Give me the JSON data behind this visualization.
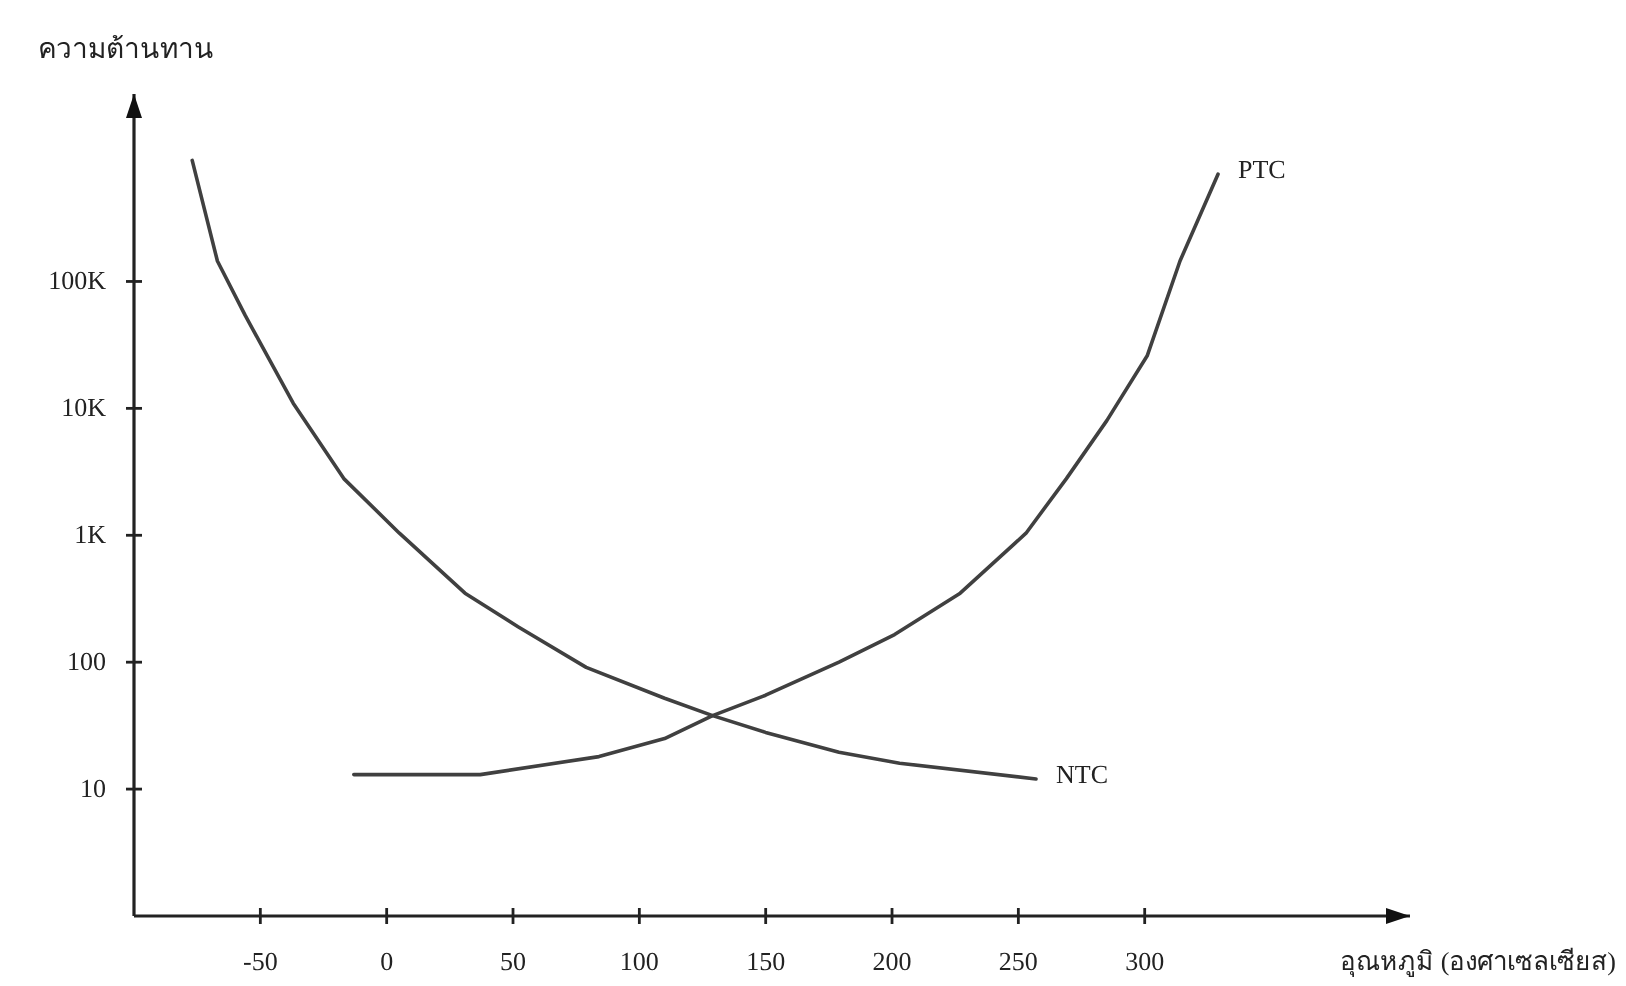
{
  "chart_data": {
    "type": "line",
    "xlabel": "อุณหภูมิ (องศาเซลเซียส)",
    "ylabel": "ความต้านทาน",
    "log": "y",
    "xlim": [
      -100,
      405
    ],
    "ylim": [
      1,
      3000000
    ],
    "xticks": [
      -50,
      0,
      50,
      100,
      150,
      200,
      250,
      300
    ],
    "yticks": [
      10,
      100,
      {
        "value": 1000,
        "label": "1K"
      },
      {
        "value": 10000,
        "label": "10K"
      },
      {
        "value": 100000,
        "label": "100K"
      }
    ],
    "series": [
      {
        "name": "PTC",
        "color": "#404040",
        "x": [
          -13,
          37,
          84,
          110,
          129,
          150,
          179,
          201,
          227,
          253,
          269,
          285,
          301,
          314,
          329
        ],
        "values": [
          13,
          13,
          18,
          25,
          38,
          55,
          100,
          165,
          350,
          1040,
          2800,
          8000,
          26000,
          145000,
          700000
        ]
      },
      {
        "name": "NTC",
        "color": "#404040",
        "x": [
          -77,
          -67,
          -56,
          -37,
          -17,
          5,
          31,
          52,
          79,
          110,
          129,
          150,
          179,
          203,
          257
        ],
        "values": [
          900000,
          145000,
          54000,
          11000,
          2800,
          1040,
          350,
          190,
          91,
          52,
          38,
          28,
          19.5,
          16,
          12
        ]
      }
    ]
  }
}
